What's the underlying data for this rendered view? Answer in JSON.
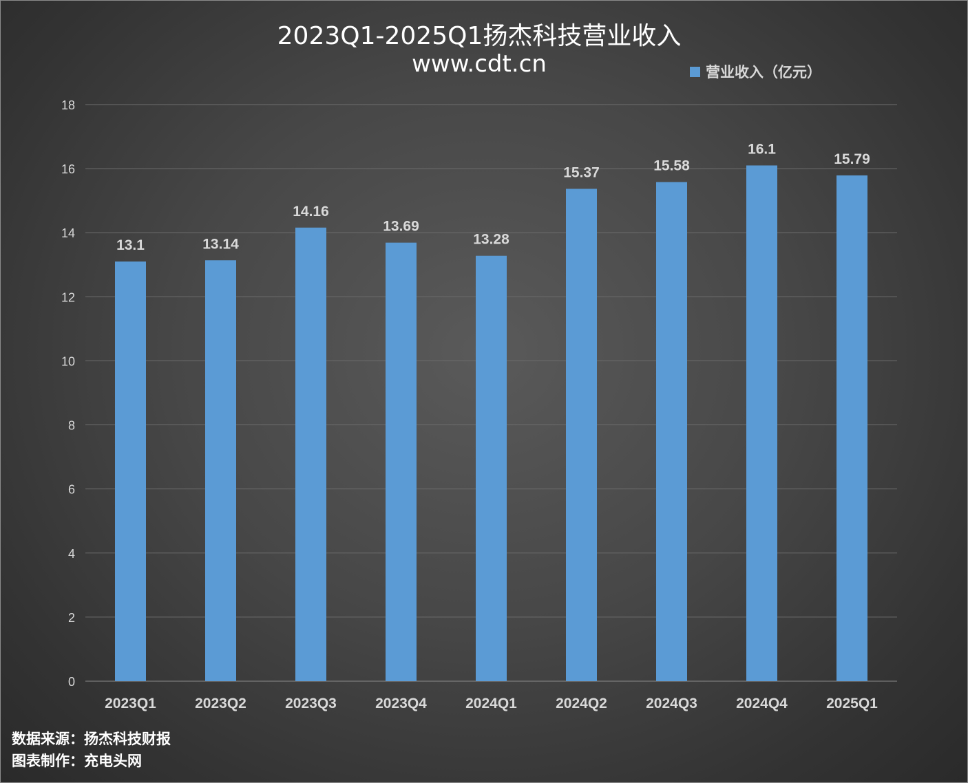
{
  "chart": {
    "title": "2023Q1-2025Q1扬杰科技营业收入",
    "subtitle": "www.cdt.cn"
  },
  "footer": {
    "source": "数据来源：扬杰科技财报",
    "credit": "图表制作：充电头网"
  },
  "colors": {
    "bar": "#5b9bd5",
    "grid": "#6e6e6e",
    "axis_text": "#d9d9d9",
    "label_text": "#d9d9d9"
  },
  "chart_data": {
    "type": "bar",
    "categories": [
      "2023Q1",
      "2023Q2",
      "2023Q3",
      "2023Q4",
      "2024Q1",
      "2024Q2",
      "2024Q3",
      "2024Q4",
      "2025Q1"
    ],
    "series": [
      {
        "name": "营业收入（亿元）",
        "values": [
          13.1,
          13.14,
          14.16,
          13.69,
          13.28,
          15.37,
          15.58,
          16.1,
          15.79
        ],
        "labels": [
          "13.1",
          "13.14",
          "14.16",
          "13.69",
          "13.28",
          "15.37",
          "15.58",
          "16.1",
          "15.79"
        ]
      }
    ],
    "ylim": [
      0,
      18
    ],
    "yticks": [
      0,
      2,
      4,
      6,
      8,
      10,
      12,
      14,
      16,
      18
    ],
    "grid": true,
    "legend_position": "top-right"
  }
}
